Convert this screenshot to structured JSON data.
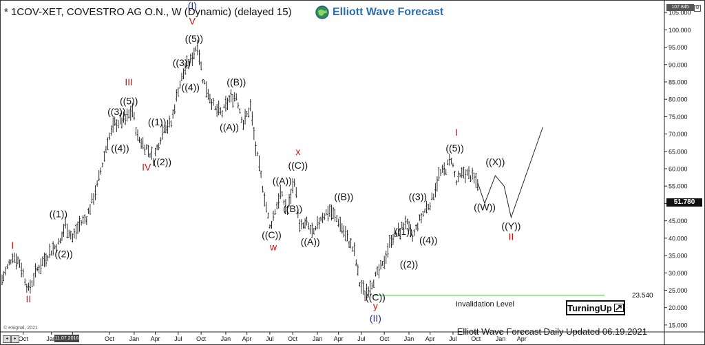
{
  "header": {
    "title": "* 1COV-XET, COVESTRO AG  O.N., W (Dynamic) (delayed 15)",
    "brand": "Elliott Wave Forecast"
  },
  "footer": {
    "updated": "Elliott Wave Forecast Daily Updated 06.19.2021",
    "copyright": "© eSignal, 2021",
    "badge": "TurningUp",
    "date_marker": "11.07.2016"
  },
  "price_tags": {
    "current": "51.780",
    "top": "107.845"
  },
  "colors": {
    "wave_red": "#cc1111",
    "wave_blue": "#1a2fa8",
    "label": "#111111",
    "bars": "#111111",
    "invalidation_line": "#3bbf3b",
    "brand": "#2b6cb0"
  },
  "chart_data": {
    "type": "bar",
    "subtype": "ohlc-price-with-elliott-wave-labels",
    "symbol": "1COV-XET",
    "timeframe": "W",
    "y_axis": {
      "ticks": [
        15,
        20,
        25,
        30,
        35,
        40,
        45,
        50,
        55,
        60,
        65,
        70,
        75,
        80,
        85,
        90,
        95,
        100,
        105
      ],
      "tick_labels": [
        "15.000",
        "20.000",
        "25.000",
        "30.000",
        "35.000",
        "40.000",
        "45.000",
        "50.000",
        "55.000",
        "60.000",
        "65.000",
        "70.000",
        "75.000",
        "80.000",
        "85.000",
        "90.000",
        "95.000",
        "100.000",
        "105.000"
      ],
      "ylim": [
        13,
        107.8
      ]
    },
    "x_axis": {
      "ticks": [
        {
          "t": 12,
          "label": "Oct"
        },
        {
          "t": 28,
          "label": "Jan"
        },
        {
          "t": 40,
          "label": "Apr"
        },
        {
          "t": 61,
          "label": "Oct"
        },
        {
          "t": 75,
          "label": "Jan"
        },
        {
          "t": 87,
          "label": "Apr"
        },
        {
          "t": 100,
          "label": "Jul"
        },
        {
          "t": 113,
          "label": "Oct"
        },
        {
          "t": 127,
          "label": "Jan"
        },
        {
          "t": 139,
          "label": "Apr"
        },
        {
          "t": 152,
          "label": "Jul"
        },
        {
          "t": 165,
          "label": "Oct"
        },
        {
          "t": 179,
          "label": "Jan"
        },
        {
          "t": 191,
          "label": "Apr"
        },
        {
          "t": 204,
          "label": "Jul"
        },
        {
          "t": 217,
          "label": "Oct"
        },
        {
          "t": 231,
          "label": "Jan"
        },
        {
          "t": 243,
          "label": "Apr"
        },
        {
          "t": 256,
          "label": "Jul"
        },
        {
          "t": 269,
          "label": "Oct"
        },
        {
          "t": 283,
          "label": "Jan"
        },
        {
          "t": 295,
          "label": "Apr"
        }
      ],
      "range": [
        0,
        376
      ]
    },
    "price_path": [
      [
        0,
        28
      ],
      [
        6,
        35
      ],
      [
        10,
        33
      ],
      [
        15,
        25
      ],
      [
        20,
        31
      ],
      [
        27,
        36
      ],
      [
        33,
        39
      ],
      [
        36,
        44
      ],
      [
        40,
        40
      ],
      [
        44,
        44
      ],
      [
        48,
        46
      ],
      [
        54,
        55
      ],
      [
        60,
        68
      ],
      [
        64,
        73
      ],
      [
        70,
        74
      ],
      [
        74,
        77
      ],
      [
        77,
        69
      ],
      [
        82,
        66
      ],
      [
        86,
        63
      ],
      [
        92,
        72
      ],
      [
        96,
        73
      ],
      [
        100,
        83
      ],
      [
        104,
        89
      ],
      [
        107,
        91
      ],
      [
        111,
        96
      ],
      [
        114,
        86
      ],
      [
        117,
        82
      ],
      [
        121,
        77
      ],
      [
        125,
        76
      ],
      [
        129,
        80
      ],
      [
        133,
        81
      ],
      [
        137,
        73
      ],
      [
        141,
        78
      ],
      [
        144,
        66
      ],
      [
        148,
        55
      ],
      [
        152,
        43
      ],
      [
        155,
        48
      ],
      [
        158,
        53
      ],
      [
        162,
        48
      ],
      [
        166,
        57
      ],
      [
        169,
        43
      ],
      [
        173,
        44
      ],
      [
        177,
        41
      ],
      [
        181,
        46
      ],
      [
        186,
        48
      ],
      [
        191,
        45
      ],
      [
        196,
        40
      ],
      [
        200,
        36
      ],
      [
        203,
        27
      ],
      [
        206,
        24
      ],
      [
        211,
        28
      ],
      [
        216,
        32
      ],
      [
        221,
        40
      ],
      [
        226,
        42
      ],
      [
        229,
        45
      ],
      [
        233,
        40
      ],
      [
        236,
        44
      ],
      [
        240,
        48
      ],
      [
        244,
        51
      ],
      [
        248,
        58
      ],
      [
        252,
        60
      ],
      [
        255,
        63
      ],
      [
        258,
        56
      ],
      [
        262,
        59
      ],
      [
        266,
        58
      ],
      [
        270,
        56
      ]
    ],
    "projection": [
      [
        270,
        56
      ],
      [
        274,
        50
      ],
      [
        280,
        58
      ],
      [
        285,
        55
      ],
      [
        289,
        46
      ],
      [
        307,
        72
      ]
    ],
    "invalidation": {
      "label": "Invalidation Level",
      "value": 23.54,
      "value_label": "23.540",
      "t_start": 210,
      "t_end": 342
    },
    "wave_labels": [
      {
        "text": "I",
        "t": 6,
        "y": 38,
        "color": "red"
      },
      {
        "text": "II",
        "t": 15,
        "y": 22.5,
        "color": "red"
      },
      {
        "text": "((1))",
        "t": 32,
        "y": 47,
        "color": "black"
      },
      {
        "text": "((2))",
        "t": 35,
        "y": 35.5,
        "color": "black"
      },
      {
        "text": "((3))",
        "t": 65,
        "y": 76.5,
        "color": "black"
      },
      {
        "text": "((4))",
        "t": 67,
        "y": 66,
        "color": "black"
      },
      {
        "text": "((5))",
        "t": 72,
        "y": 79.5,
        "color": "black"
      },
      {
        "text": "III",
        "t": 72,
        "y": 85,
        "color": "red"
      },
      {
        "text": "IV",
        "t": 82,
        "y": 60.5,
        "color": "red"
      },
      {
        "text": "((1))",
        "t": 88,
        "y": 73.5,
        "color": "black"
      },
      {
        "text": "((2))",
        "t": 91,
        "y": 62,
        "color": "black"
      },
      {
        "text": "((3))",
        "t": 102,
        "y": 90.5,
        "color": "black"
      },
      {
        "text": "((4))",
        "t": 107,
        "y": 83.5,
        "color": "black"
      },
      {
        "text": "((5))",
        "t": 109,
        "y": 97.5,
        "color": "black"
      },
      {
        "text": "V",
        "t": 108,
        "y": 102.5,
        "color": "red"
      },
      {
        "text": "(I)",
        "t": 108,
        "y": 107,
        "color": "blue"
      },
      {
        "text": "((B))",
        "t": 133,
        "y": 85,
        "color": "black"
      },
      {
        "text": "((A))",
        "t": 129,
        "y": 72,
        "color": "black"
      },
      {
        "text": "((A))",
        "t": 159,
        "y": 56.5,
        "color": "black"
      },
      {
        "text": "((B))",
        "t": 165,
        "y": 48.5,
        "color": "black"
      },
      {
        "text": "((C))",
        "t": 168,
        "y": 61,
        "color": "black"
      },
      {
        "text": "x",
        "t": 168,
        "y": 65,
        "color": "red"
      },
      {
        "text": "((C))",
        "t": 153,
        "y": 41,
        "color": "black"
      },
      {
        "text": "w",
        "t": 154,
        "y": 37.5,
        "color": "red"
      },
      {
        "text": "((A))",
        "t": 175,
        "y": 39,
        "color": "black"
      },
      {
        "text": "((B))",
        "t": 194,
        "y": 52,
        "color": "black"
      },
      {
        "text": "((C))",
        "t": 212,
        "y": 23,
        "color": "black"
      },
      {
        "text": "y",
        "t": 212,
        "y": 20.5,
        "color": "red"
      },
      {
        "text": "(II)",
        "t": 212,
        "y": 17,
        "color": "blue"
      },
      {
        "text": "((1))",
        "t": 228,
        "y": 42,
        "color": "black"
      },
      {
        "text": "((2))",
        "t": 231,
        "y": 32.5,
        "color": "black"
      },
      {
        "text": "((3))",
        "t": 236,
        "y": 52,
        "color": "black"
      },
      {
        "text": "((4))",
        "t": 242,
        "y": 39.5,
        "color": "black"
      },
      {
        "text": "((5))",
        "t": 257,
        "y": 66,
        "color": "black"
      },
      {
        "text": "I",
        "t": 258,
        "y": 70.5,
        "color": "red"
      },
      {
        "text": "((X))",
        "t": 280,
        "y": 62,
        "color": "black"
      },
      {
        "text": "((W))",
        "t": 274,
        "y": 49,
        "color": "black"
      },
      {
        "text": "((Y))",
        "t": 289,
        "y": 43.5,
        "color": "black"
      },
      {
        "text": "II",
        "t": 289,
        "y": 40.5,
        "color": "red"
      }
    ]
  }
}
